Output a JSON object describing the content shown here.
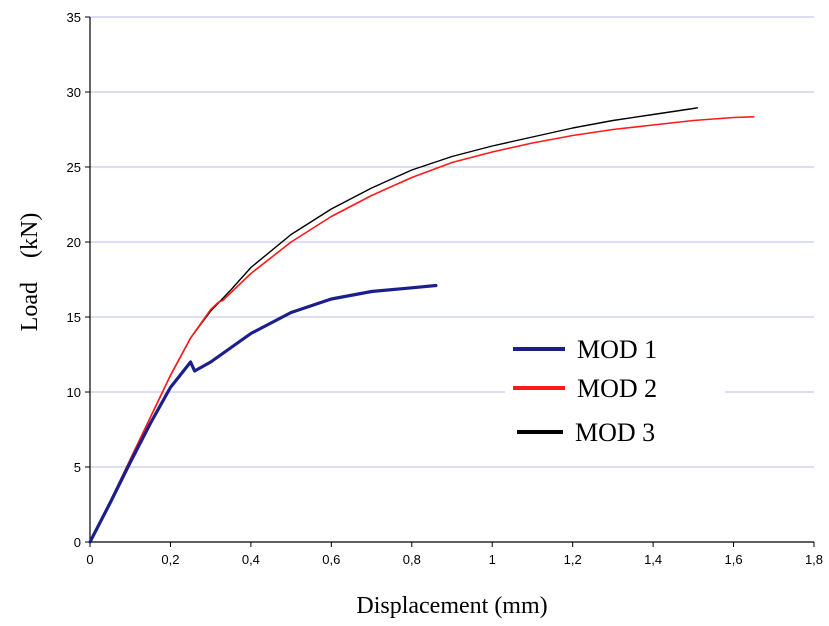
{
  "chart_data": {
    "type": "line",
    "title": "",
    "xlabel": "Displacement (mm)",
    "ylabel": "Load    (kN)",
    "xlim": [
      0,
      1.8
    ],
    "ylim": [
      0,
      35
    ],
    "x_ticks": [
      "0",
      "0,2",
      "0,4",
      "0,6",
      "0,8",
      "1",
      "1,2",
      "1,4",
      "1,6",
      "1,8"
    ],
    "y_ticks": [
      "0",
      "5",
      "10",
      "15",
      "20",
      "25",
      "30",
      "35"
    ],
    "grid": "horizontal",
    "legend_position": "center-right",
    "series": [
      {
        "name": "MOD 1",
        "color": "#1a1f8c",
        "points": [
          [
            0,
            0
          ],
          [
            0.05,
            2.6
          ],
          [
            0.1,
            5.3
          ],
          [
            0.15,
            7.9
          ],
          [
            0.2,
            10.3
          ],
          [
            0.25,
            12.0
          ],
          [
            0.26,
            11.4
          ],
          [
            0.3,
            12.0
          ],
          [
            0.4,
            13.9
          ],
          [
            0.5,
            15.3
          ],
          [
            0.6,
            16.2
          ],
          [
            0.7,
            16.7
          ],
          [
            0.8,
            16.95
          ],
          [
            0.86,
            17.1
          ]
        ]
      },
      {
        "name": "MOD 2",
        "color": "#ff1a1a",
        "points": [
          [
            0,
            0
          ],
          [
            0.05,
            2.7
          ],
          [
            0.1,
            5.5
          ],
          [
            0.15,
            8.3
          ],
          [
            0.2,
            11.1
          ],
          [
            0.25,
            13.6
          ],
          [
            0.3,
            15.5
          ],
          [
            0.32,
            16.0
          ],
          [
            0.33,
            16.1
          ],
          [
            0.4,
            17.9
          ],
          [
            0.5,
            20.0
          ],
          [
            0.6,
            21.7
          ],
          [
            0.7,
            23.1
          ],
          [
            0.8,
            24.3
          ],
          [
            0.9,
            25.3
          ],
          [
            1.0,
            26.0
          ],
          [
            1.1,
            26.6
          ],
          [
            1.2,
            27.1
          ],
          [
            1.3,
            27.5
          ],
          [
            1.4,
            27.8
          ],
          [
            1.5,
            28.1
          ],
          [
            1.6,
            28.3
          ],
          [
            1.65,
            28.35
          ]
        ]
      },
      {
        "name": "MOD 3",
        "color": "#000000",
        "points": [
          [
            0,
            0
          ],
          [
            0.05,
            2.7
          ],
          [
            0.1,
            5.5
          ],
          [
            0.15,
            8.3
          ],
          [
            0.2,
            11.1
          ],
          [
            0.25,
            13.6
          ],
          [
            0.3,
            15.4
          ],
          [
            0.35,
            16.8
          ],
          [
            0.4,
            18.3
          ],
          [
            0.5,
            20.5
          ],
          [
            0.6,
            22.2
          ],
          [
            0.7,
            23.6
          ],
          [
            0.8,
            24.8
          ],
          [
            0.9,
            25.7
          ],
          [
            1.0,
            26.4
          ],
          [
            1.1,
            27.0
          ],
          [
            1.2,
            27.6
          ],
          [
            1.3,
            28.1
          ],
          [
            1.4,
            28.5
          ],
          [
            1.5,
            28.9
          ],
          [
            1.51,
            28.95
          ]
        ]
      }
    ]
  }
}
